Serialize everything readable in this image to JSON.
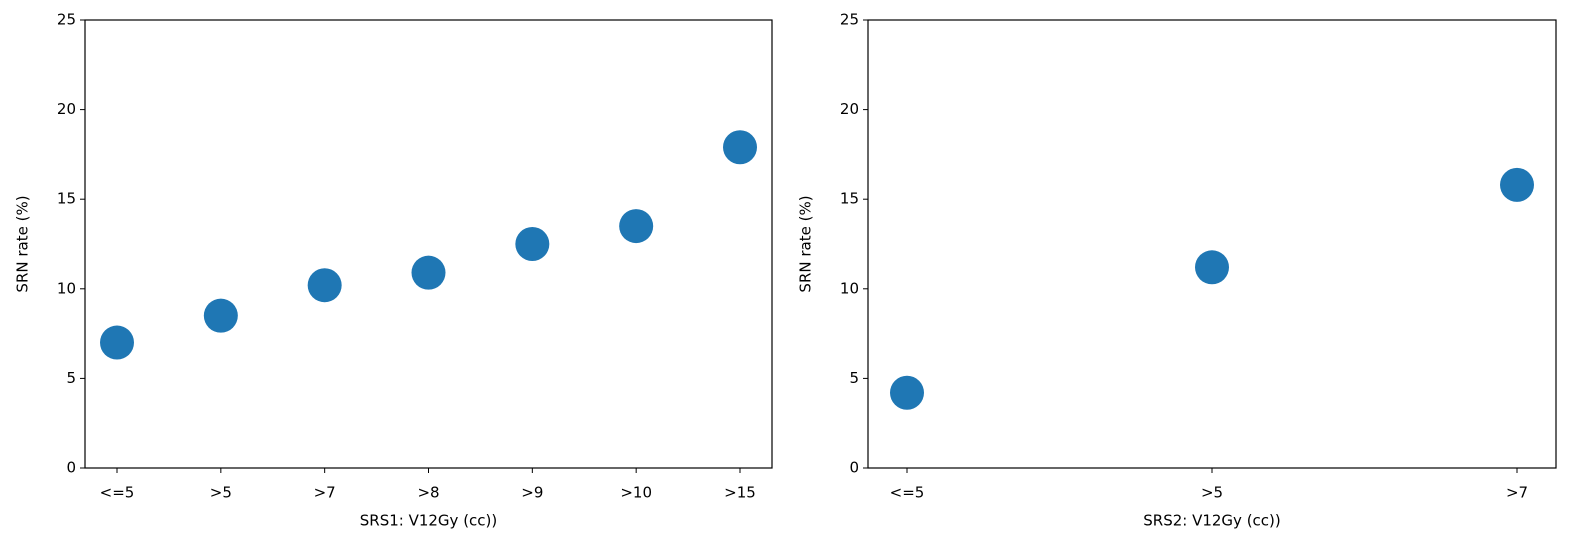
{
  "chart_data": [
    {
      "type": "scatter",
      "x_label": "SRS1: V12Gy (cc))",
      "y_label": "SRN rate (%)",
      "categories": [
        "<=5",
        ">5",
        ">7",
        ">8",
        ">9",
        ">10",
        ">15"
      ],
      "values": [
        7.0,
        8.5,
        10.2,
        10.9,
        12.5,
        13.5,
        17.9
      ],
      "color": "#1f77b4",
      "ylim": [
        0,
        25
      ],
      "yticks": [
        0,
        5,
        10,
        15,
        20,
        25
      ]
    },
    {
      "type": "scatter",
      "x_label": "SRS2: V12Gy (cc))",
      "y_label": "SRN rate (%)",
      "categories": [
        "<=5",
        ">5",
        ">7"
      ],
      "values": [
        4.2,
        11.2,
        15.8
      ],
      "color": "#1f77b4",
      "ylim": [
        0,
        25
      ],
      "yticks": [
        0,
        5,
        10,
        15,
        20,
        25
      ]
    }
  ]
}
